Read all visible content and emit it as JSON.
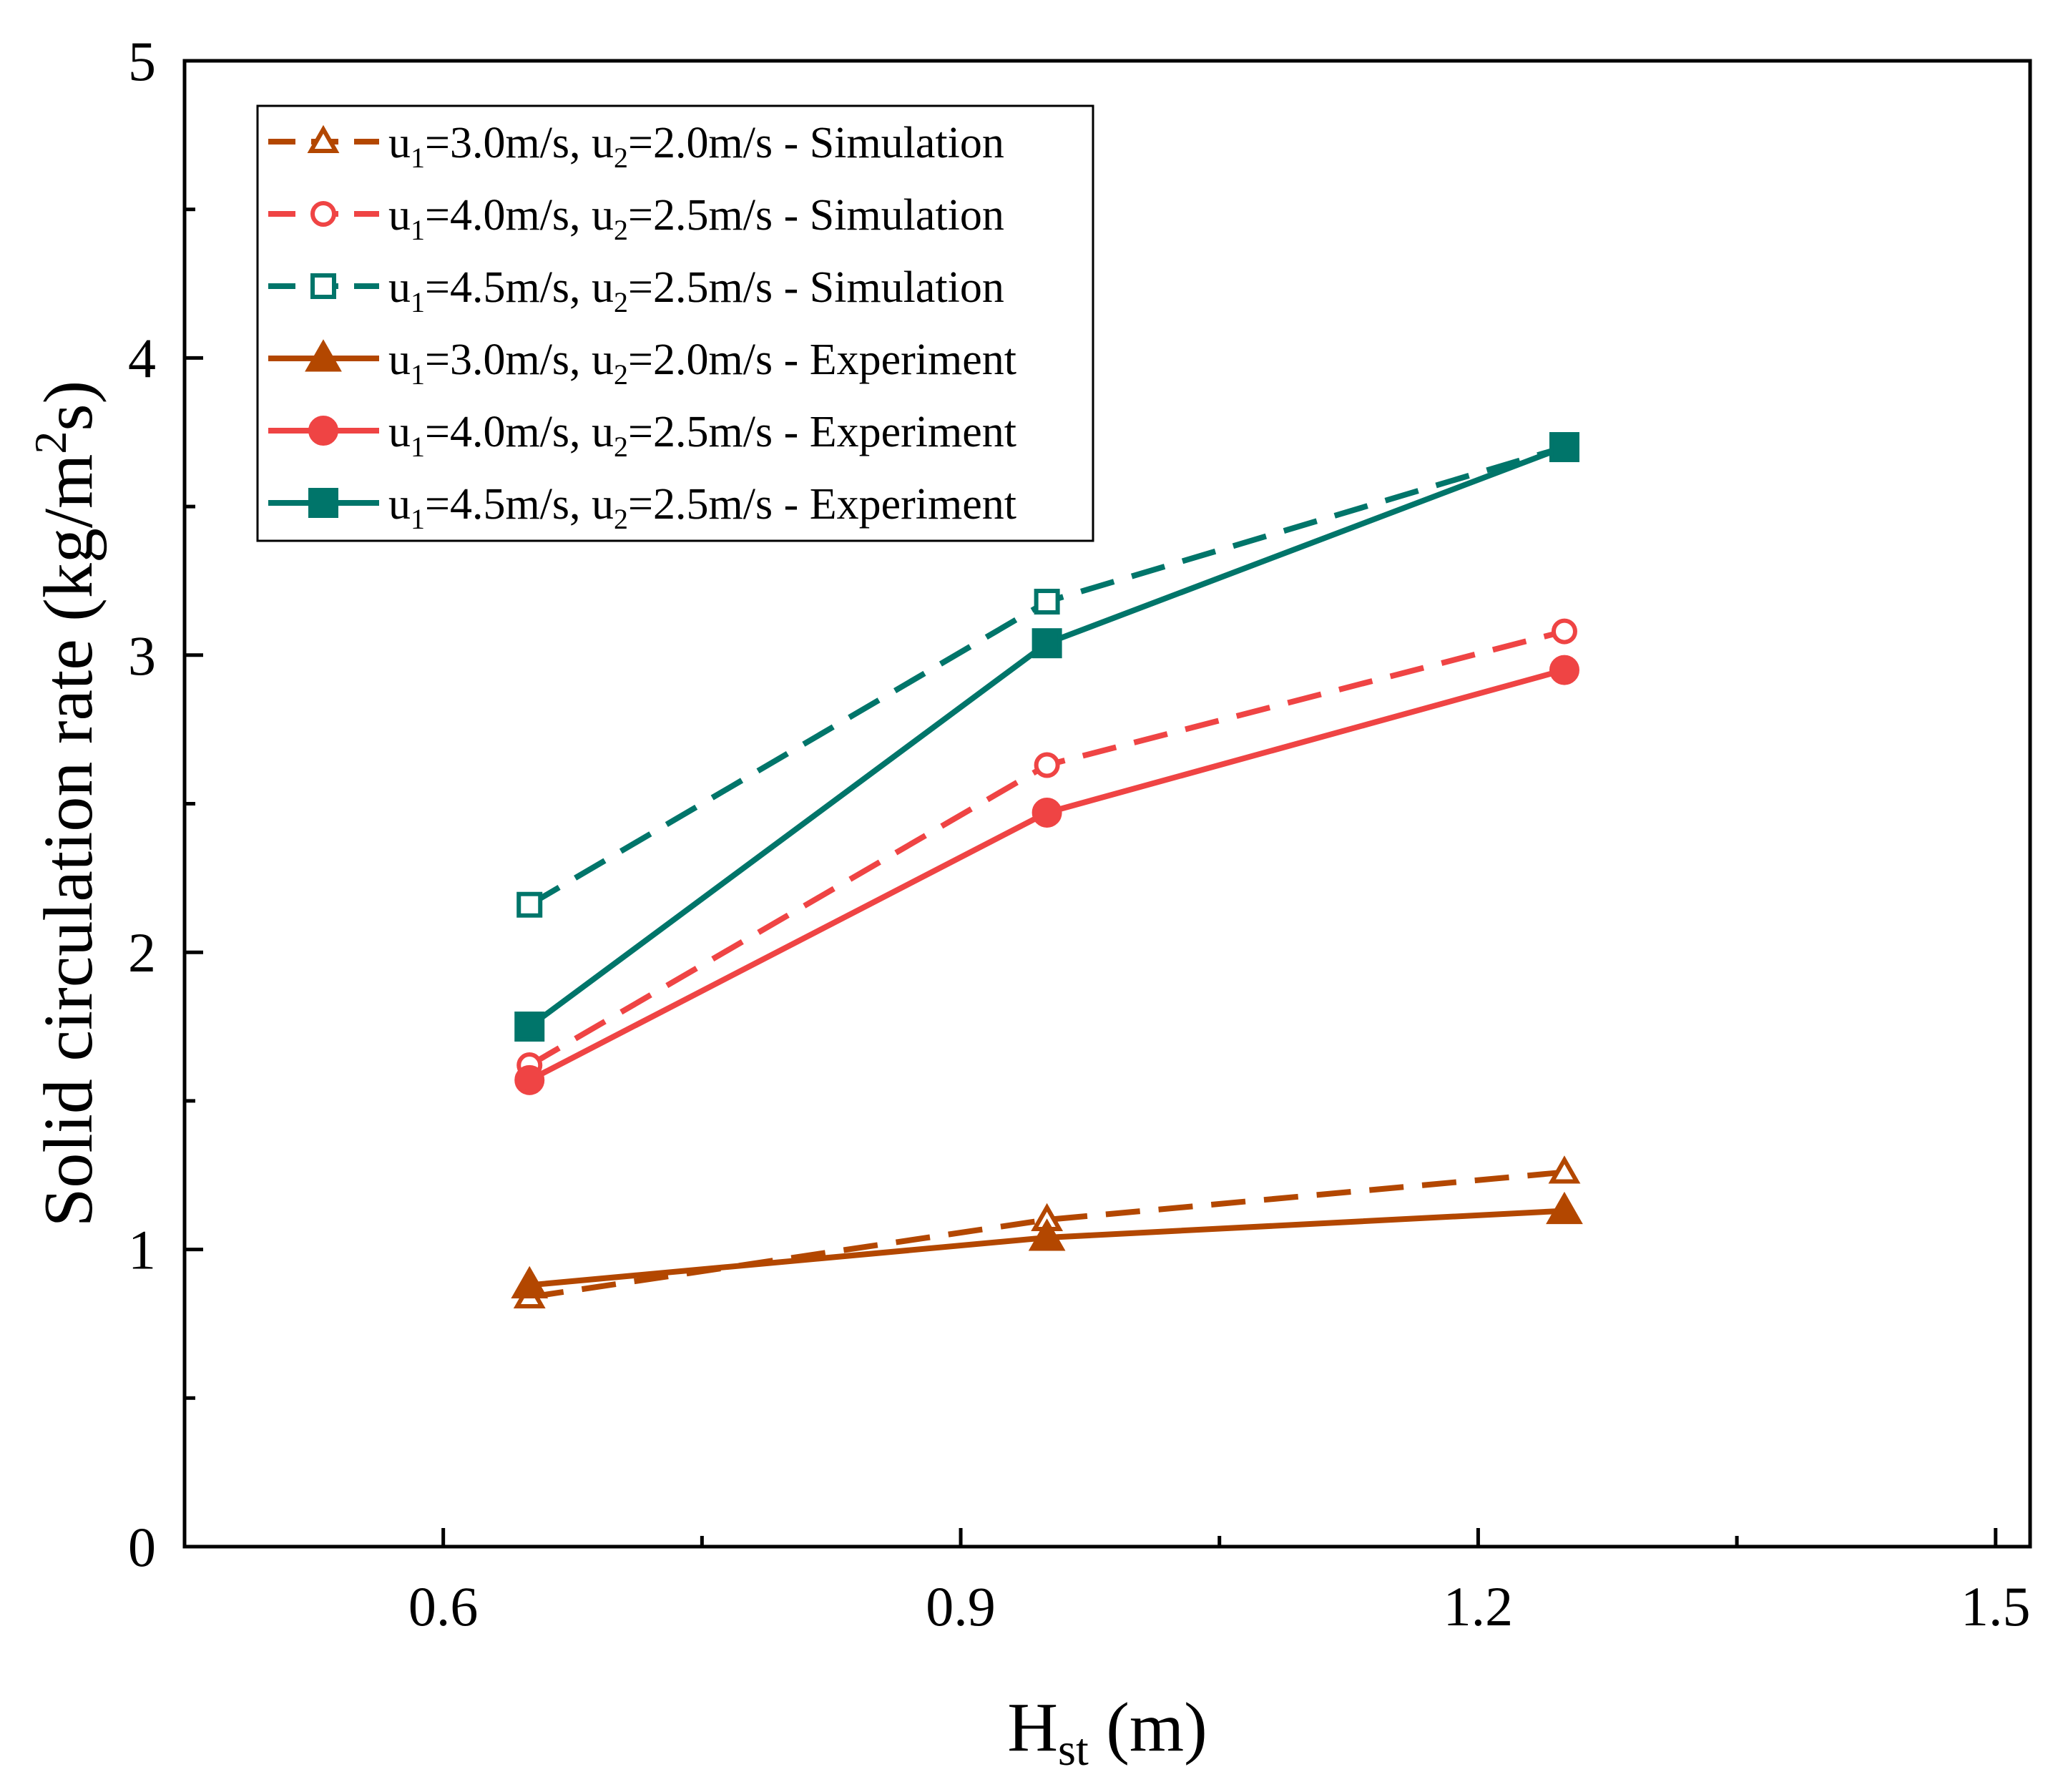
{
  "chart_data": {
    "type": "line",
    "title": "",
    "xlabel": {
      "main": "H",
      "sub": "st",
      "suffix": " (m)"
    },
    "ylabel": {
      "main": "Solid circulation rate (kg/m",
      "sup": "2",
      "suffix": "s)"
    },
    "xlim": [
      0.45,
      1.52
    ],
    "ylim": [
      0,
      5
    ],
    "xticks": [
      0.6,
      0.9,
      1.2,
      1.5
    ],
    "xtick_labels": [
      "0.6",
      "0.9",
      "1.2",
      "1.5"
    ],
    "xminor": [
      0.45,
      0.75,
      1.05,
      1.35
    ],
    "yticks": [
      0,
      1,
      2,
      3,
      4,
      5
    ],
    "ytick_labels": [
      "0",
      "1",
      "2",
      "3",
      "4",
      "5"
    ],
    "yminor": [
      0.5,
      1.5,
      2.5,
      3.5,
      4.5
    ],
    "grid": false,
    "legend_position": "top-left",
    "x": [
      0.65,
      0.95,
      1.25
    ],
    "series": [
      {
        "name": "u1=3.0m/s, u2=2.0m/s - Simulation",
        "label": {
          "u1": "3.0m/s",
          "u2": "2.0m/s",
          "kind": "Simulation"
        },
        "values": [
          0.84,
          1.1,
          1.26
        ],
        "color": "#b34700",
        "dashed": true,
        "marker": "triangle",
        "filled": false
      },
      {
        "name": "u1=4.0m/s, u2=2.5m/s - Simulation",
        "label": {
          "u1": "4.0m/s",
          "u2": "2.5m/s",
          "kind": "Simulation"
        },
        "values": [
          1.62,
          2.63,
          3.08
        ],
        "color": "#ef4444",
        "dashed": true,
        "marker": "circle",
        "filled": false
      },
      {
        "name": "u1=4.5m/s, u2=2.5m/s - Simulation",
        "label": {
          "u1": "4.5m/s",
          "u2": "2.5m/s",
          "kind": "Simulation"
        },
        "values": [
          2.16,
          3.18,
          3.7
        ],
        "color": "#00756a",
        "dashed": true,
        "marker": "square",
        "filled": false
      },
      {
        "name": "u1=3.0m/s, u2=2.0m/s - Experiment",
        "label": {
          "u1": "3.0m/s",
          "u2": "2.0m/s",
          "kind": "Experiment"
        },
        "values": [
          0.88,
          1.04,
          1.13
        ],
        "color": "#b34700",
        "dashed": false,
        "marker": "triangle",
        "filled": true
      },
      {
        "name": "u1=4.0m/s, u2=2.5m/s - Experiment",
        "label": {
          "u1": "4.0m/s",
          "u2": "2.5m/s",
          "kind": "Experiment"
        },
        "values": [
          1.57,
          2.47,
          2.95
        ],
        "color": "#ef4444",
        "dashed": false,
        "marker": "circle",
        "filled": true
      },
      {
        "name": "u1=4.5m/s, u2=2.5m/s - Experiment",
        "label": {
          "u1": "4.5m/s",
          "u2": "2.5m/s",
          "kind": "Experiment"
        },
        "values": [
          1.75,
          3.04,
          3.7
        ],
        "color": "#00756a",
        "dashed": false,
        "marker": "square",
        "filled": true
      }
    ]
  }
}
